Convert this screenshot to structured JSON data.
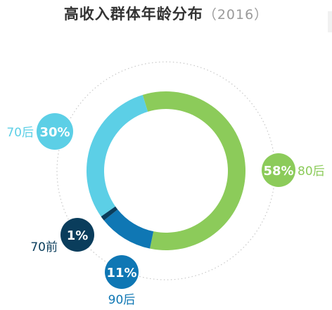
{
  "title": {
    "main": "高收入群体年龄分布",
    "year": "（2016）"
  },
  "colors": {
    "title": "#333333",
    "year": "#9a9a9a",
    "guide_ring": "#c8c8c8"
  },
  "chart_data": {
    "type": "pie",
    "style": "donut",
    "title": "高收入群体年龄分布（2016）",
    "unit": "%",
    "slices": [
      {
        "category": "80后",
        "value": 58,
        "label": "58%",
        "color": "#8ccb5a"
      },
      {
        "category": "90后",
        "value": 11,
        "label": "11%",
        "color": "#0f77b4"
      },
      {
        "category": "70前",
        "value": 1,
        "label": "1%",
        "color": "#0a3d5c"
      },
      {
        "category": "70后",
        "value": 30,
        "label": "30%",
        "color": "#5ccfe6"
      }
    ],
    "legend": "none"
  }
}
